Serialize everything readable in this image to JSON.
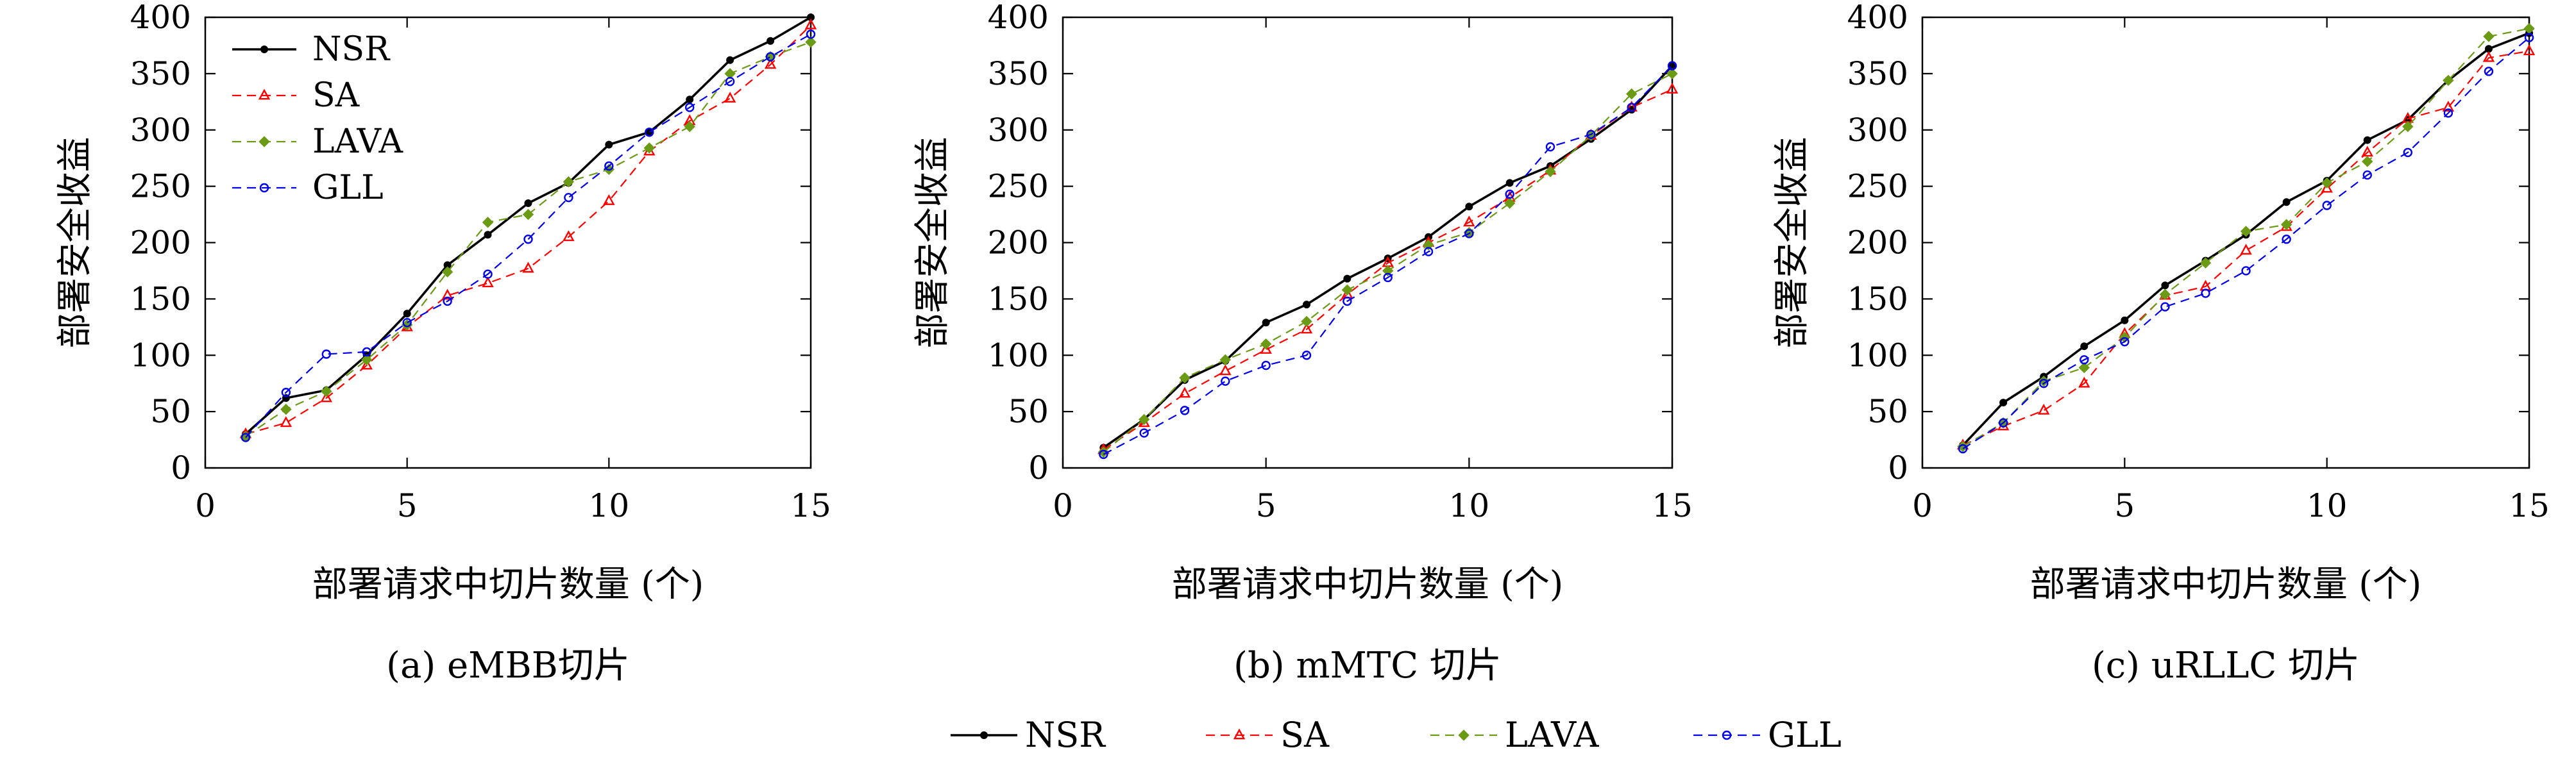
{
  "chart_data": [
    {
      "type": "line",
      "caption": "(a) eMBB切片",
      "xlabel": "部署请求中切片数量 (个)",
      "ylabel": "部署安全收益",
      "xlim": [
        0,
        15
      ],
      "ylim": [
        0,
        400
      ],
      "xticks": [
        0,
        5,
        10,
        15
      ],
      "yticks": [
        0,
        50,
        100,
        150,
        200,
        250,
        300,
        350,
        400
      ],
      "grid": false,
      "legend_position": "top-left",
      "x": [
        1,
        2,
        3,
        4,
        5,
        6,
        7,
        8,
        9,
        10,
        11,
        12,
        13,
        14,
        15
      ],
      "series": [
        {
          "name": "NSR",
          "values": [
            30,
            62,
            69,
            100,
            137,
            180,
            207,
            235,
            253,
            287,
            298,
            327,
            362,
            379,
            400
          ]
        },
        {
          "name": "SA",
          "values": [
            30,
            40,
            62,
            91,
            125,
            153,
            164,
            177,
            205,
            237,
            281,
            308,
            328,
            358,
            393
          ]
        },
        {
          "name": "LAVA",
          "values": [
            28,
            52,
            68,
            96,
            127,
            174,
            218,
            225,
            254,
            265,
            284,
            303,
            350,
            365,
            378
          ]
        },
        {
          "name": "GLL",
          "values": [
            27,
            67,
            101,
            103,
            129,
            148,
            172,
            203,
            240,
            268,
            298,
            320,
            343,
            365,
            385
          ]
        }
      ]
    },
    {
      "type": "line",
      "caption": "(b) mMTC 切片",
      "xlabel": "部署请求中切片数量 (个)",
      "ylabel": "部署安全收益",
      "xlim": [
        0,
        15
      ],
      "ylim": [
        0,
        400
      ],
      "xticks": [
        0,
        5,
        10,
        15
      ],
      "yticks": [
        0,
        50,
        100,
        150,
        200,
        250,
        300,
        350,
        400
      ],
      "grid": false,
      "x": [
        1,
        2,
        3,
        4,
        5,
        6,
        7,
        8,
        9,
        10,
        11,
        12,
        13,
        14,
        15
      ],
      "series": [
        {
          "name": "NSR",
          "values": [
            18,
            43,
            78,
            95,
            129,
            145,
            168,
            186,
            205,
            232,
            253,
            268,
            292,
            318,
            357
          ]
        },
        {
          "name": "SA",
          "values": [
            16,
            40,
            66,
            86,
            105,
            123,
            154,
            182,
            200,
            218,
            240,
            264,
            295,
            320,
            336
          ]
        },
        {
          "name": "LAVA",
          "values": [
            14,
            43,
            80,
            96,
            110,
            130,
            158,
            175,
            198,
            209,
            235,
            263,
            295,
            332,
            350
          ]
        },
        {
          "name": "GLL",
          "values": [
            12,
            31,
            51,
            77,
            91,
            100,
            148,
            169,
            192,
            208,
            243,
            285,
            296,
            320,
            357
          ]
        }
      ]
    },
    {
      "type": "line",
      "caption": "(c) uRLLC 切片",
      "xlabel": "部署请求中切片数量 (个)",
      "ylabel": "部署安全收益",
      "xlim": [
        0,
        15
      ],
      "ylim": [
        0,
        400
      ],
      "xticks": [
        0,
        5,
        10,
        15
      ],
      "yticks": [
        0,
        50,
        100,
        150,
        200,
        250,
        300,
        350,
        400
      ],
      "grid": false,
      "x": [
        1,
        2,
        3,
        4,
        5,
        6,
        7,
        8,
        9,
        10,
        11,
        12,
        13,
        14,
        15
      ],
      "series": [
        {
          "name": "NSR",
          "values": [
            20,
            58,
            81,
            108,
            131,
            162,
            184,
            207,
            236,
            255,
            291,
            309,
            344,
            372,
            386
          ]
        },
        {
          "name": "SA",
          "values": [
            20,
            37,
            51,
            75,
            119,
            153,
            161,
            193,
            214,
            248,
            280,
            310,
            320,
            364,
            370
          ]
        },
        {
          "name": "LAVA",
          "values": [
            19,
            40,
            77,
            89,
            116,
            154,
            182,
            210,
            216,
            253,
            272,
            303,
            344,
            383,
            390
          ]
        },
        {
          "name": "GLL",
          "values": [
            17,
            40,
            75,
            96,
            112,
            143,
            155,
            175,
            203,
            233,
            260,
            280,
            315,
            352,
            382
          ]
        }
      ]
    }
  ],
  "legend": {
    "entries": [
      "NSR",
      "SA",
      "LAVA",
      "GLL"
    ]
  },
  "series_styles": [
    {
      "color": "#000000",
      "marker": "dot",
      "dash": "solid"
    },
    {
      "color": "#ff0000",
      "marker": "triangle",
      "dash": "dashed"
    },
    {
      "color": "#6b9a14",
      "marker": "diamond",
      "dash": "dashed"
    },
    {
      "color": "#0000ee",
      "marker": "circle",
      "dash": "dashed"
    }
  ]
}
